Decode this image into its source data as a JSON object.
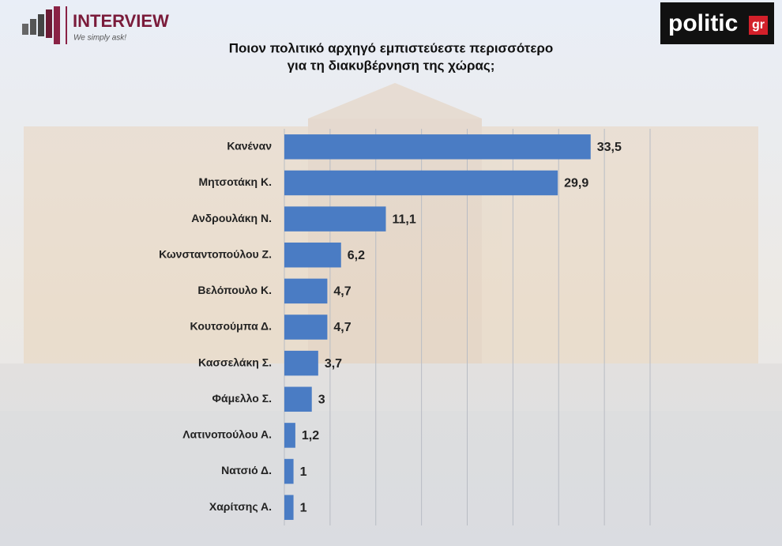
{
  "brand": {
    "name": "INTERVIEW",
    "tagline": "We simply ask!",
    "source_name": "politic",
    "source_suffix": "gr"
  },
  "chart_data": {
    "type": "barh",
    "title": [
      "Ποιον πολιτικό αρχηγό εμπιστεύεστε περισσότερο",
      "για τη διακυβέρνηση της χώρας;"
    ],
    "categories": [
      "Κανέναν",
      "Μητσοτάκη Κ.",
      "Ανδρουλάκη Ν.",
      "Κωνσταντοπούλου Ζ.",
      "Βελόπουλο Κ.",
      "Κουτσούμπα Δ.",
      "Κασσελάκη Σ.",
      "Φάμελλο Σ.",
      "Λατινοπούλου Α.",
      "Νατσιό Δ.",
      "Χαρίτσης Α."
    ],
    "values": [
      33.5,
      29.9,
      11.1,
      6.2,
      4.7,
      4.7,
      3.7,
      3,
      1.2,
      1,
      1
    ],
    "value_labels": [
      "33,5",
      "29,9",
      "11,1",
      "6,2",
      "4,7",
      "4,7",
      "3,7",
      "3",
      "1,2",
      "1",
      "1"
    ],
    "color": "#4a7cc4",
    "xlim": [
      0,
      40
    ],
    "xticks": [
      0,
      5,
      10,
      15,
      20,
      25,
      30,
      35,
      40
    ],
    "grid": true
  }
}
